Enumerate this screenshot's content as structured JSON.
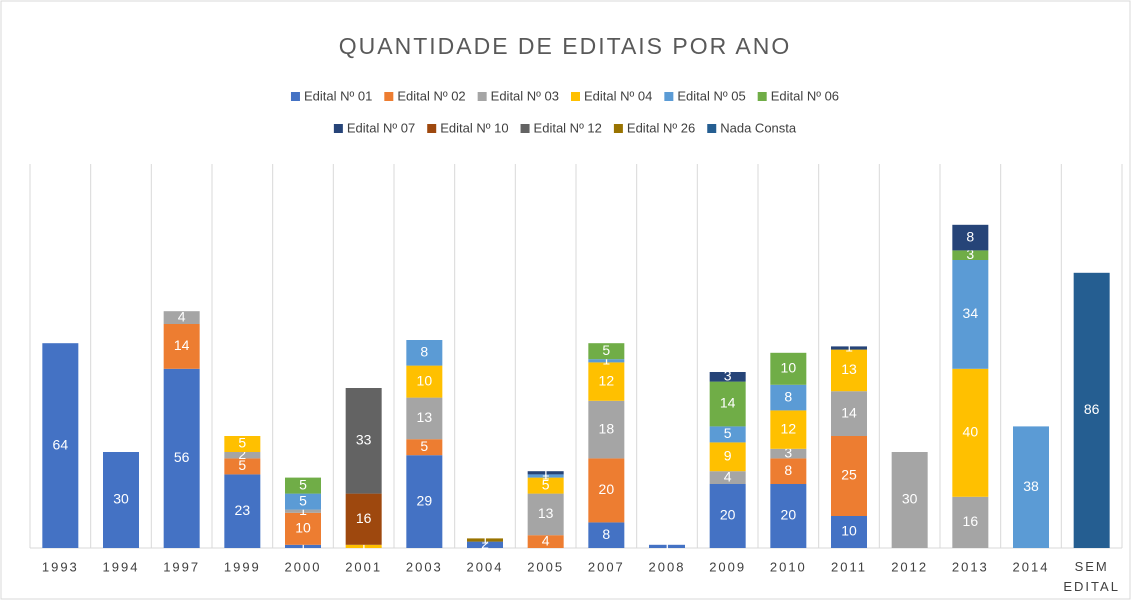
{
  "chart_data": {
    "type": "stacked_bar",
    "title": "QUANTIDADE DE EDITAIS POR ANO",
    "categories": [
      "1993",
      "1994",
      "1997",
      "1999",
      "2000",
      "2001",
      "2003",
      "2004",
      "2005",
      "2007",
      "2008",
      "2009",
      "2010",
      "2011",
      "2012",
      "2013",
      "2014",
      "SEM EDITAL"
    ],
    "series": [
      {
        "name": "Edital Nº 01",
        "color": "#4472c4",
        "values": [
          64,
          30,
          56,
          23,
          1,
          null,
          29,
          2,
          null,
          8,
          1,
          20,
          20,
          10,
          null,
          null,
          null,
          null
        ]
      },
      {
        "name": "Edital Nº 02",
        "color": "#ed7d31",
        "values": [
          null,
          null,
          14,
          5,
          10,
          null,
          5,
          null,
          4,
          20,
          null,
          null,
          8,
          25,
          null,
          null,
          null,
          null
        ]
      },
      {
        "name": "Edital Nº 03",
        "color": "#a5a5a5",
        "values": [
          null,
          null,
          4,
          2,
          1,
          null,
          13,
          null,
          13,
          18,
          null,
          4,
          3,
          14,
          30,
          16,
          null,
          null
        ]
      },
      {
        "name": "Edital Nº 04",
        "color": "#ffc000",
        "values": [
          null,
          null,
          null,
          5,
          null,
          1,
          10,
          null,
          5,
          12,
          null,
          9,
          12,
          13,
          null,
          40,
          null,
          null
        ]
      },
      {
        "name": "Edital Nº 05",
        "color": "#5b9bd5",
        "values": [
          null,
          null,
          null,
          null,
          5,
          null,
          8,
          null,
          1,
          1,
          null,
          5,
          8,
          null,
          null,
          34,
          38,
          null
        ]
      },
      {
        "name": "Edital Nº 06",
        "color": "#70ad47",
        "values": [
          null,
          null,
          null,
          null,
          5,
          null,
          null,
          null,
          null,
          5,
          null,
          14,
          10,
          null,
          null,
          3,
          null,
          null
        ]
      },
      {
        "name": "Edital Nº 07",
        "color": "#264478",
        "values": [
          null,
          null,
          null,
          null,
          null,
          null,
          null,
          null,
          1,
          null,
          null,
          3,
          null,
          1,
          null,
          8,
          null,
          null
        ]
      },
      {
        "name": "Edital Nº 10",
        "color": "#9e480e",
        "values": [
          null,
          null,
          null,
          null,
          null,
          16,
          null,
          null,
          null,
          null,
          null,
          null,
          null,
          null,
          null,
          null,
          null,
          null
        ]
      },
      {
        "name": "Edital Nº 12",
        "color": "#636363",
        "values": [
          null,
          null,
          null,
          null,
          null,
          33,
          null,
          null,
          null,
          null,
          null,
          null,
          null,
          null,
          null,
          null,
          null,
          null
        ]
      },
      {
        "name": "Edital Nº 26",
        "color": "#997300",
        "values": [
          null,
          null,
          null,
          null,
          null,
          null,
          null,
          1,
          null,
          null,
          null,
          null,
          null,
          null,
          null,
          null,
          null,
          null
        ]
      },
      {
        "name": "Nada Consta",
        "color": "#255e91",
        "values": [
          null,
          null,
          null,
          null,
          null,
          null,
          null,
          null,
          null,
          null,
          null,
          null,
          null,
          null,
          null,
          null,
          null,
          86
        ]
      }
    ],
    "ylim": [
      0,
      120
    ],
    "grid": "vertical"
  }
}
